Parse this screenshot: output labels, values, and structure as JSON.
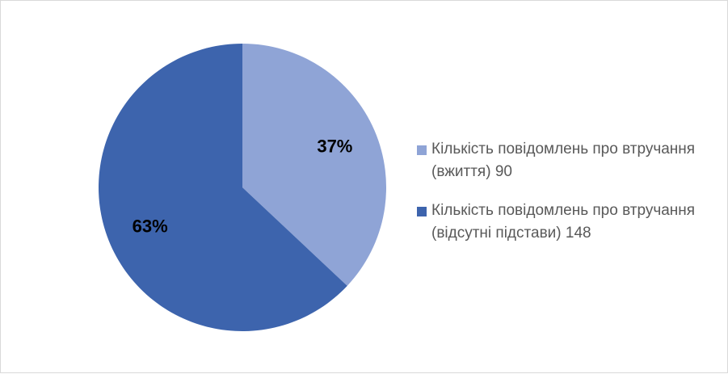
{
  "chart_data": {
    "type": "pie",
    "categories": [
      "Кількість повідомлень про втручання (вжиття) 90",
      "Кількість повідомлень про втручання (відсутні підстави) 148"
    ],
    "values": [
      37,
      63
    ],
    "value_labels": [
      "37%",
      "63%"
    ],
    "colors": [
      "#8fa4d6",
      "#3d64ad"
    ]
  }
}
